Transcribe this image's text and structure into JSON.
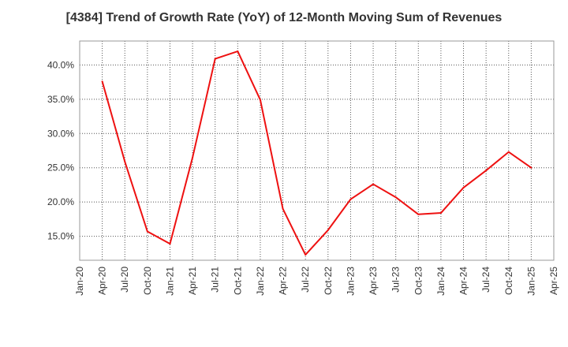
{
  "chart_data": {
    "type": "line",
    "title": "[4384]  Trend of Growth Rate (YoY) of 12-Month Moving Sum of Revenues",
    "xlabel": "",
    "ylabel": "",
    "x_ticks": [
      "Jan-20",
      "Apr-20",
      "Jul-20",
      "Oct-20",
      "Jan-21",
      "Apr-21",
      "Jul-21",
      "Oct-21",
      "Jan-22",
      "Apr-22",
      "Jul-22",
      "Oct-22",
      "Jan-23",
      "Apr-23",
      "Jul-23",
      "Oct-23",
      "Jan-24",
      "Apr-24",
      "Jul-24",
      "Oct-24",
      "Jan-25",
      "Apr-25"
    ],
    "y_ticks": [
      "15.0%",
      "20.0%",
      "25.0%",
      "30.0%",
      "35.0%",
      "40.0%"
    ],
    "y_tick_values": [
      15,
      20,
      25,
      30,
      35,
      40
    ],
    "ylim": [
      11.5,
      43.5
    ],
    "grid": true,
    "line_color": "#ee1111",
    "series": [
      {
        "x": [
          "Apr-20",
          "Jul-20",
          "Oct-20",
          "Jan-21",
          "Apr-21",
          "Jul-21",
          "Oct-21",
          "Jan-22",
          "Apr-22",
          "Jul-22",
          "Oct-22",
          "Jan-23",
          "Apr-23",
          "Jul-23",
          "Oct-23",
          "Jan-24",
          "Apr-24",
          "Jul-24",
          "Oct-24",
          "Jan-25"
        ],
        "values": [
          37.6,
          25.9,
          15.7,
          13.9,
          26.5,
          40.9,
          42.0,
          34.9,
          19.0,
          12.3,
          15.9,
          20.4,
          22.6,
          20.7,
          18.2,
          18.4,
          22.1,
          24.6,
          27.3,
          25.0
        ]
      }
    ]
  }
}
